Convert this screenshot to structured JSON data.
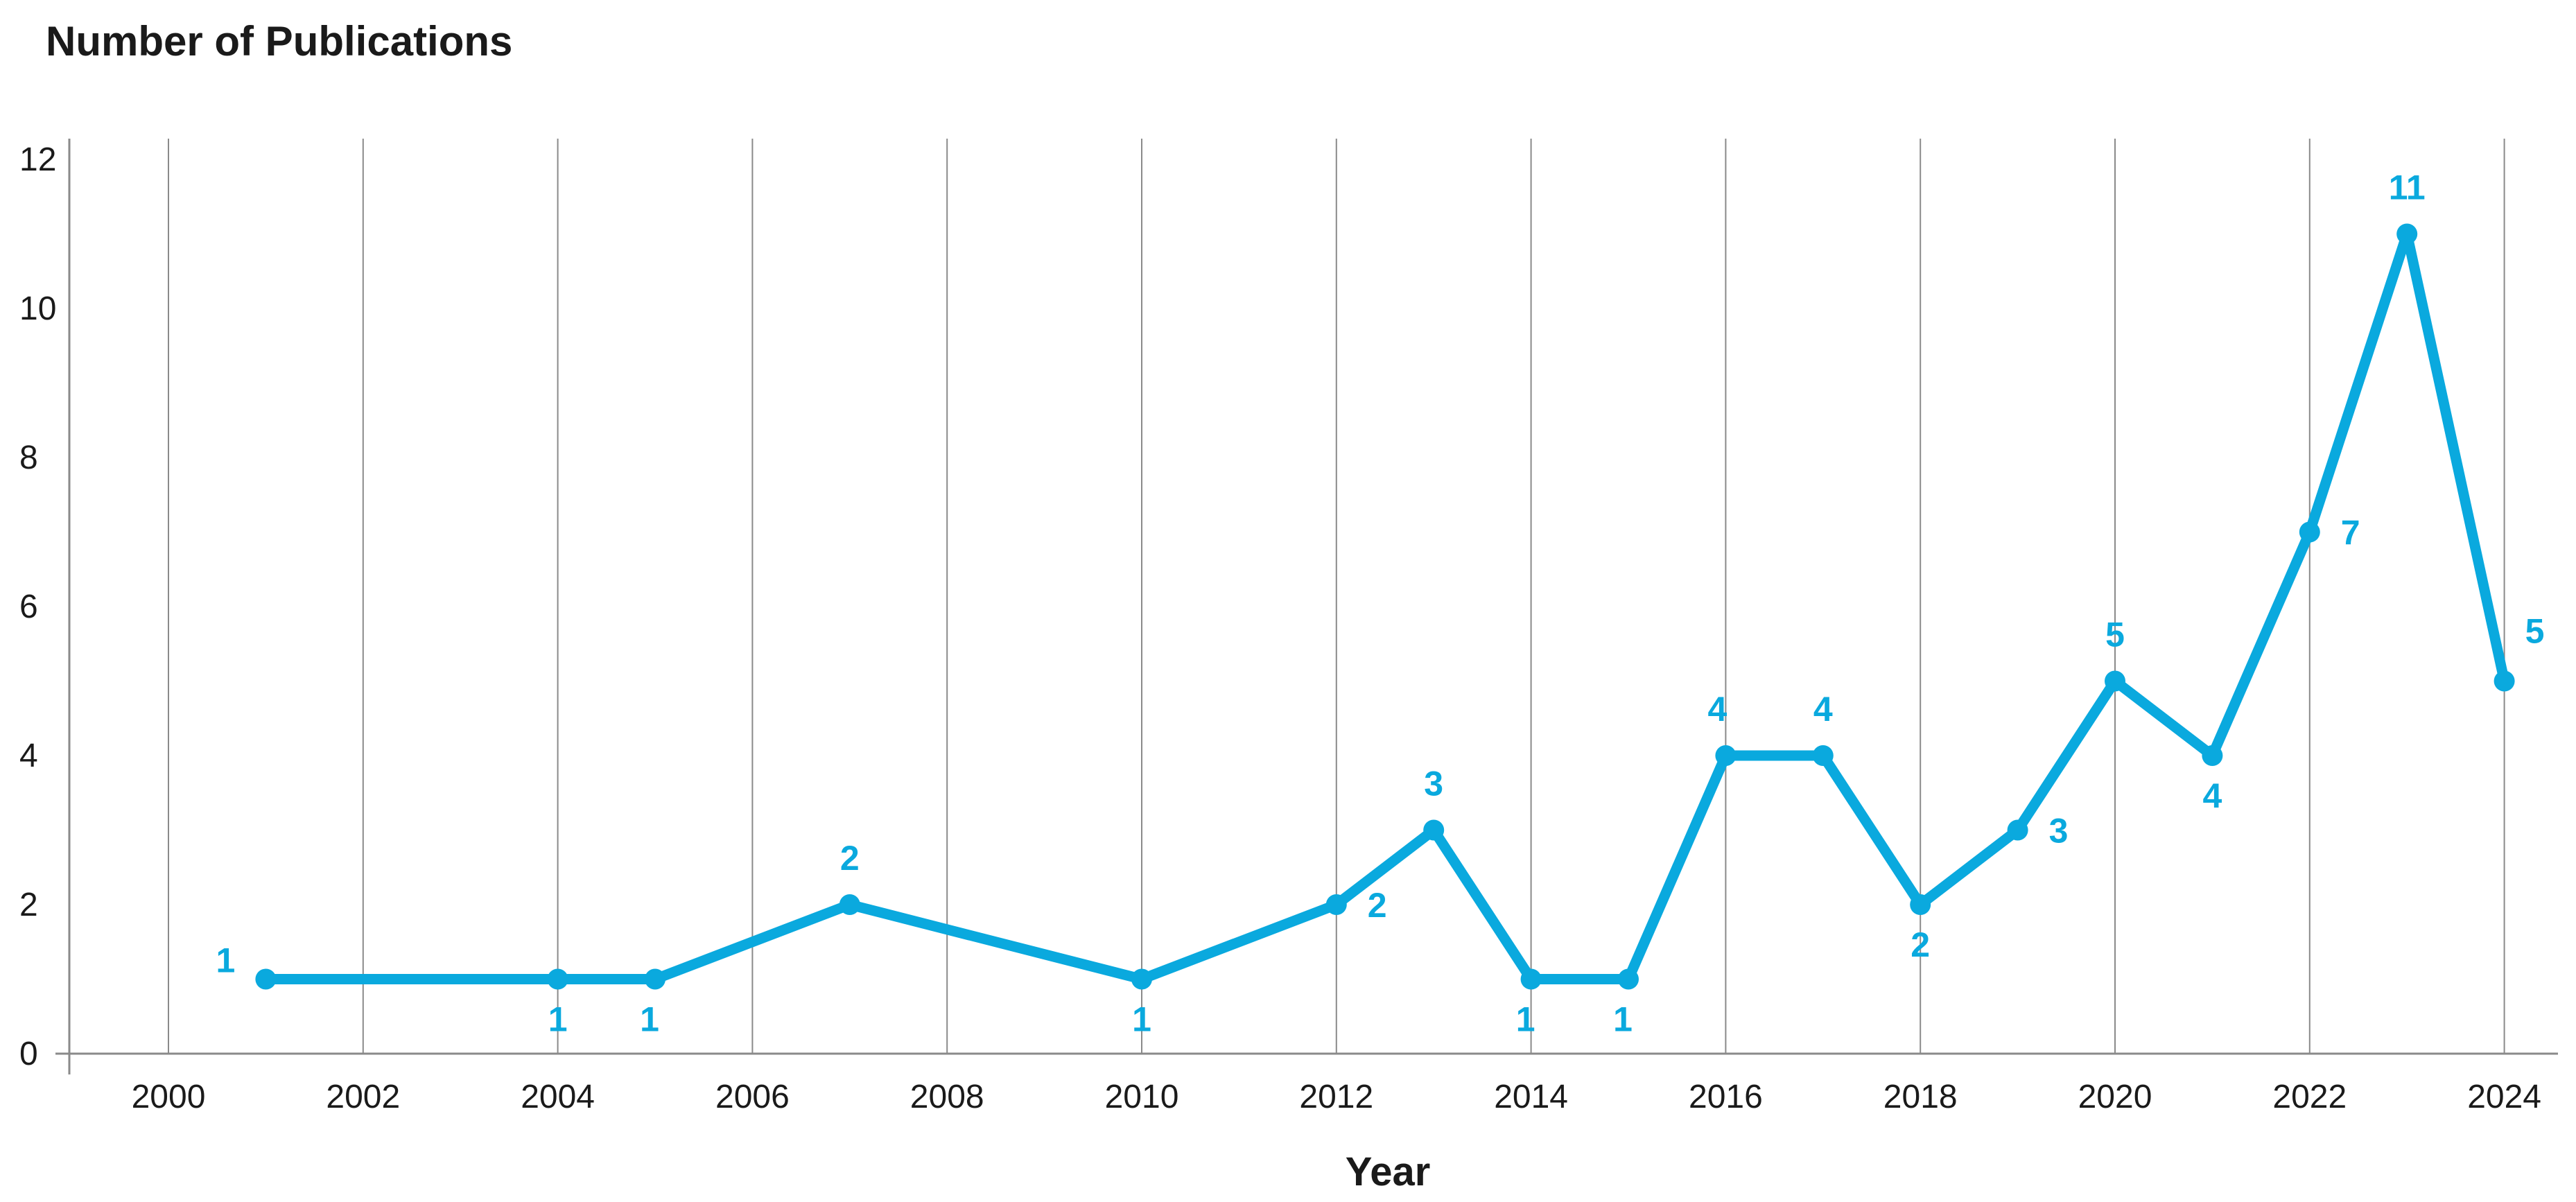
{
  "chart_data": {
    "type": "line",
    "title": "Number of Publications",
    "xlabel": "Year",
    "ylabel": "",
    "xlim": [
      1998,
      2024.5
    ],
    "ylim": [
      0,
      12
    ],
    "x_ticks": [
      2000,
      2002,
      2004,
      2006,
      2008,
      2010,
      2012,
      2014,
      2016,
      2018,
      2020,
      2022,
      2024
    ],
    "y_ticks": [
      0,
      2,
      4,
      6,
      8,
      10,
      12
    ],
    "grid": {
      "vertical": true,
      "horizontal": false
    },
    "legend": "none",
    "series": [
      {
        "color": "#0aa9de",
        "points": [
          {
            "x": 2001,
            "y": 1
          },
          {
            "x": 2004,
            "y": 1
          },
          {
            "x": 2005,
            "y": 1
          },
          {
            "x": 2007,
            "y": 2
          },
          {
            "x": 2010,
            "y": 1
          },
          {
            "x": 2012,
            "y": 2
          },
          {
            "x": 2013,
            "y": 3
          },
          {
            "x": 2014,
            "y": 1
          },
          {
            "x": 2015,
            "y": 1
          },
          {
            "x": 2016,
            "y": 4
          },
          {
            "x": 2017,
            "y": 4
          },
          {
            "x": 2018,
            "y": 2
          },
          {
            "x": 2019,
            "y": 3
          },
          {
            "x": 2020,
            "y": 5
          },
          {
            "x": 2021,
            "y": 4
          },
          {
            "x": 2022,
            "y": 7
          },
          {
            "x": 2023,
            "y": 11
          },
          {
            "x": 2024,
            "y": 5
          }
        ]
      }
    ]
  }
}
